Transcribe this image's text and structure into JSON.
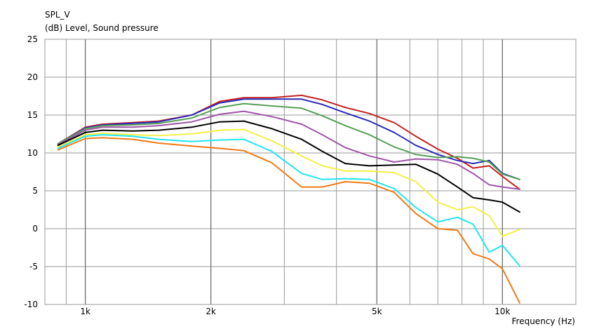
{
  "chart_data": {
    "type": "line",
    "title": "SPL_V",
    "subtitle": "(dB)  Level, Sound pressure",
    "xlabel": "Frequency  (Hz)",
    "x_scale": "log",
    "xlim": [
      800,
      15000
    ],
    "ylim": [
      -10,
      25
    ],
    "grid": true,
    "x_tick_labels": [
      {
        "value": 1000,
        "label": "1k"
      },
      {
        "value": 2000,
        "label": "2k"
      },
      {
        "value": 5000,
        "label": "5k"
      },
      {
        "value": 10000,
        "label": "10k"
      }
    ],
    "y_ticks": [
      25,
      20,
      15,
      10,
      5,
      0,
      -5,
      -10
    ],
    "series": [
      {
        "color": "#c42020",
        "points": [
          [
            860,
            11.2
          ],
          [
            1000,
            13.4
          ],
          [
            1100,
            13.8
          ],
          [
            1300,
            14
          ],
          [
            1500,
            14.2
          ],
          [
            1800,
            15
          ],
          [
            2100,
            16.8
          ],
          [
            2400,
            17.3
          ],
          [
            2800,
            17.3
          ],
          [
            3300,
            17.6
          ],
          [
            3700,
            17
          ],
          [
            4200,
            16
          ],
          [
            4800,
            15.2
          ],
          [
            5500,
            14
          ],
          [
            6200,
            12.2
          ],
          [
            7000,
            10.5
          ],
          [
            7800,
            9.3
          ],
          [
            8500,
            8
          ],
          [
            9300,
            8.3
          ],
          [
            10000,
            6.9
          ],
          [
            11000,
            5.2
          ]
        ]
      },
      {
        "color": "#2a2ab8",
        "points": [
          [
            860,
            11.2
          ],
          [
            1000,
            13.3
          ],
          [
            1100,
            13.7
          ],
          [
            1300,
            13.9
          ],
          [
            1500,
            14.1
          ],
          [
            1800,
            15
          ],
          [
            2100,
            16.6
          ],
          [
            2400,
            17.1
          ],
          [
            2800,
            17.1
          ],
          [
            3300,
            17.1
          ],
          [
            3700,
            16.4
          ],
          [
            4200,
            15.3
          ],
          [
            4800,
            14.2
          ],
          [
            5500,
            12.7
          ],
          [
            6200,
            11
          ],
          [
            7000,
            9.8
          ],
          [
            7800,
            9
          ],
          [
            8500,
            8.6
          ],
          [
            9300,
            9
          ],
          [
            10000,
            7.3
          ],
          [
            11000,
            6.5
          ]
        ]
      },
      {
        "color": "#55a055",
        "points": [
          [
            860,
            11.2
          ],
          [
            1000,
            13.2
          ],
          [
            1100,
            13.6
          ],
          [
            1300,
            13.7
          ],
          [
            1500,
            13.9
          ],
          [
            1800,
            14.6
          ],
          [
            2100,
            16
          ],
          [
            2400,
            16.5
          ],
          [
            2800,
            16.2
          ],
          [
            3300,
            15.9
          ],
          [
            3700,
            14.9
          ],
          [
            4200,
            13.6
          ],
          [
            4800,
            12.4
          ],
          [
            5500,
            10.8
          ],
          [
            6200,
            9.8
          ],
          [
            7000,
            9.4
          ],
          [
            7800,
            9.5
          ],
          [
            8500,
            9.3
          ],
          [
            9300,
            8.8
          ],
          [
            10000,
            7.2
          ],
          [
            11000,
            6.5
          ]
        ]
      },
      {
        "color": "#a055a8",
        "points": [
          [
            860,
            11.1
          ],
          [
            1000,
            13
          ],
          [
            1100,
            13.4
          ],
          [
            1300,
            13.4
          ],
          [
            1500,
            13.6
          ],
          [
            1800,
            14.1
          ],
          [
            2100,
            15.1
          ],
          [
            2400,
            15.5
          ],
          [
            2800,
            14.8
          ],
          [
            3300,
            13.8
          ],
          [
            3700,
            12.4
          ],
          [
            4200,
            10.7
          ],
          [
            4800,
            9.6
          ],
          [
            5500,
            8.8
          ],
          [
            6200,
            9.2
          ],
          [
            7000,
            9.1
          ],
          [
            7800,
            8.5
          ],
          [
            8500,
            7.3
          ],
          [
            9300,
            5.8
          ],
          [
            10000,
            5.5
          ],
          [
            11000,
            5.2
          ]
        ]
      },
      {
        "color": "#000000",
        "points": [
          [
            860,
            11
          ],
          [
            1000,
            12.7
          ],
          [
            1100,
            13
          ],
          [
            1300,
            12.9
          ],
          [
            1500,
            13
          ],
          [
            1800,
            13.4
          ],
          [
            2100,
            14.1
          ],
          [
            2400,
            14.2
          ],
          [
            2800,
            13.2
          ],
          [
            3300,
            11.8
          ],
          [
            3700,
            10.2
          ],
          [
            4200,
            8.6
          ],
          [
            4800,
            8.3
          ],
          [
            5500,
            8.4
          ],
          [
            6200,
            8.5
          ],
          [
            7000,
            7.2
          ],
          [
            7800,
            5.5
          ],
          [
            8500,
            4.1
          ],
          [
            9300,
            3.8
          ],
          [
            10000,
            3.5
          ],
          [
            11000,
            2.2
          ]
        ]
      },
      {
        "color": "#f2f04a",
        "points": [
          [
            860,
            10.8
          ],
          [
            1000,
            12.4
          ],
          [
            1100,
            12.6
          ],
          [
            1300,
            12.4
          ],
          [
            1500,
            12.3
          ],
          [
            1800,
            12.5
          ],
          [
            2100,
            13
          ],
          [
            2400,
            13.1
          ],
          [
            2800,
            11.6
          ],
          [
            3300,
            9.6
          ],
          [
            3700,
            8.3
          ],
          [
            4200,
            7.6
          ],
          [
            4800,
            7.6
          ],
          [
            5500,
            7.4
          ],
          [
            6200,
            6.2
          ],
          [
            7000,
            3.5
          ],
          [
            7800,
            2.5
          ],
          [
            8500,
            2.9
          ],
          [
            9300,
            1.7
          ],
          [
            10000,
            -1
          ],
          [
            11000,
            -0.1
          ]
        ]
      },
      {
        "color": "#22e4f0",
        "points": [
          [
            860,
            10.6
          ],
          [
            1000,
            12.2
          ],
          [
            1100,
            12.4
          ],
          [
            1300,
            12.2
          ],
          [
            1500,
            11.8
          ],
          [
            1800,
            11.5
          ],
          [
            2100,
            11.7
          ],
          [
            2400,
            11.8
          ],
          [
            2800,
            10.2
          ],
          [
            3300,
            7.3
          ],
          [
            3700,
            6.5
          ],
          [
            4200,
            6.6
          ],
          [
            4800,
            6.5
          ],
          [
            5500,
            5.3
          ],
          [
            6200,
            2.8
          ],
          [
            7000,
            0.9
          ],
          [
            7800,
            1.5
          ],
          [
            8500,
            0.6
          ],
          [
            9300,
            -3.1
          ],
          [
            10000,
            -2.2
          ],
          [
            11000,
            -4.9
          ]
        ]
      },
      {
        "color": "#f07a18",
        "points": [
          [
            860,
            10.4
          ],
          [
            1000,
            11.9
          ],
          [
            1100,
            12
          ],
          [
            1300,
            11.8
          ],
          [
            1500,
            11.3
          ],
          [
            1800,
            10.9
          ],
          [
            2100,
            10.6
          ],
          [
            2400,
            10.3
          ],
          [
            2800,
            8.7
          ],
          [
            3300,
            5.5
          ],
          [
            3700,
            5.5
          ],
          [
            4200,
            6.2
          ],
          [
            4800,
            6
          ],
          [
            5500,
            4.8
          ],
          [
            6200,
            2
          ],
          [
            7000,
            0
          ],
          [
            7800,
            -0.2
          ],
          [
            8500,
            -3.3
          ],
          [
            9300,
            -4
          ],
          [
            10000,
            -5.3
          ],
          [
            11000,
            -9.8
          ]
        ]
      }
    ]
  }
}
